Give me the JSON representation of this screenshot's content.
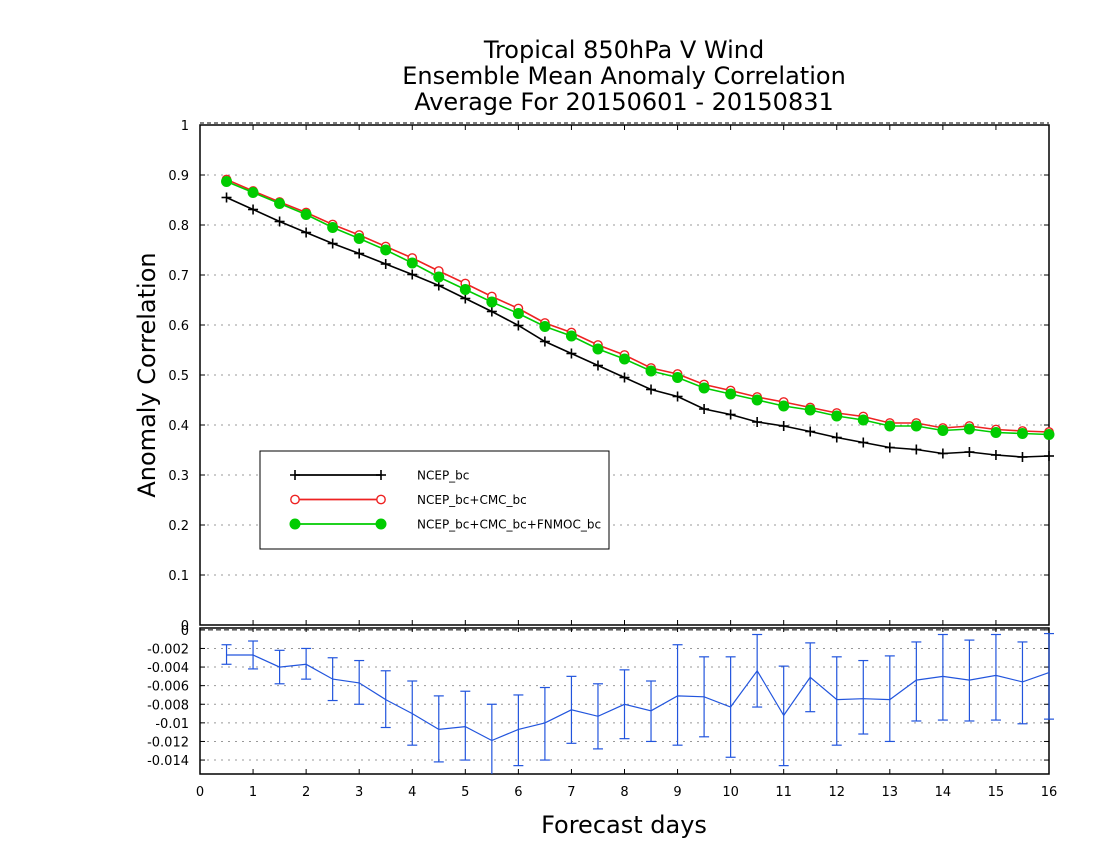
{
  "colors": {
    "ncep": "#000000",
    "ncep_cmc": "#ee2222",
    "ncep_cmc_fnmoc": "#00cc00",
    "diff": "#2255dd",
    "grid": "#999999"
  },
  "chart_data": [
    {
      "type": "line",
      "title": [
        "Tropical 850hPa V Wind",
        "Ensemble Mean Anomaly Correlation",
        "Average For 20150601 - 20150831"
      ],
      "ylabel": "Anomaly Correlation",
      "xlim": [
        0,
        16
      ],
      "ylim": [
        0,
        1
      ],
      "yticks": [
        "0",
        "0.1",
        "0.2",
        "0.3",
        "0.4",
        "0.5",
        "0.6",
        "0.7",
        "0.8",
        "0.9",
        "1"
      ],
      "grid": true,
      "legend_placement": "lower-left",
      "x": [
        0.5,
        1,
        1.5,
        2,
        2.5,
        3,
        3.5,
        4,
        4.5,
        5,
        5.5,
        6,
        6.5,
        7,
        7.5,
        8,
        8.5,
        9,
        9.5,
        10,
        10.5,
        11,
        11.5,
        12,
        12.5,
        13,
        13.5,
        14,
        14.5,
        15,
        15.5,
        16
      ],
      "series": [
        {
          "name": "NCEP_bc",
          "marker": "plus",
          "values": [
            0.855,
            0.831,
            0.807,
            0.785,
            0.763,
            0.743,
            0.722,
            0.701,
            0.679,
            0.653,
            0.627,
            0.599,
            0.567,
            0.543,
            0.519,
            0.495,
            0.471,
            0.457,
            0.432,
            0.421,
            0.406,
            0.398,
            0.387,
            0.375,
            0.365,
            0.355,
            0.351,
            0.343,
            0.346,
            0.34,
            0.336,
            0.338
          ]
        },
        {
          "name": "NCEP_bc+CMC_bc",
          "marker": "open-circle",
          "values": [
            0.891,
            0.868,
            0.846,
            0.825,
            0.801,
            0.78,
            0.757,
            0.734,
            0.708,
            0.683,
            0.657,
            0.633,
            0.604,
            0.585,
            0.56,
            0.54,
            0.514,
            0.502,
            0.481,
            0.469,
            0.456,
            0.446,
            0.435,
            0.424,
            0.417,
            0.404,
            0.404,
            0.394,
            0.398,
            0.391,
            0.388,
            0.386
          ]
        },
        {
          "name": "NCEP_bc+CMC_bc+FNMOC_bc",
          "marker": "filled-circle",
          "values": [
            0.887,
            0.865,
            0.843,
            0.821,
            0.795,
            0.773,
            0.75,
            0.724,
            0.696,
            0.671,
            0.646,
            0.623,
            0.597,
            0.578,
            0.552,
            0.532,
            0.508,
            0.495,
            0.474,
            0.462,
            0.45,
            0.438,
            0.43,
            0.418,
            0.41,
            0.398,
            0.398,
            0.389,
            0.392,
            0.385,
            0.383,
            0.381
          ]
        }
      ]
    },
    {
      "type": "line",
      "xlabel": "Forecast days",
      "xlim": [
        0,
        16
      ],
      "xticks": [
        "0",
        "1",
        "2",
        "3",
        "4",
        "5",
        "6",
        "7",
        "8",
        "9",
        "10",
        "11",
        "12",
        "13",
        "14",
        "15",
        "16"
      ],
      "ylim": [
        -0.0155,
        0.0002
      ],
      "yticks": [
        {
          "value": 0,
          "label": "0"
        },
        {
          "value": -0.002,
          "label": "-0.002"
        },
        {
          "value": -0.004,
          "label": "-0.004"
        },
        {
          "value": -0.006,
          "label": "-0.006"
        },
        {
          "value": -0.008,
          "label": "-0.008"
        },
        {
          "value": -0.01,
          "label": "-0.01"
        },
        {
          "value": -0.012,
          "label": "-0.012"
        },
        {
          "value": -0.014,
          "label": "-0.014"
        }
      ],
      "grid": true,
      "x": [
        0.5,
        1,
        1.5,
        2,
        2.5,
        3,
        3.5,
        4,
        4.5,
        5,
        5.5,
        6,
        6.5,
        7,
        7.5,
        8,
        8.5,
        9,
        9.5,
        10,
        10.5,
        11,
        11.5,
        12,
        12.5,
        13,
        13.5,
        14,
        14.5,
        15,
        15.5,
        16
      ],
      "values": [
        -0.0027,
        -0.0027,
        -0.004,
        -0.0037,
        -0.0053,
        -0.0057,
        -0.0075,
        -0.009,
        -0.0107,
        -0.0104,
        -0.0119,
        -0.0107,
        -0.01,
        -0.0086,
        -0.0093,
        -0.008,
        -0.0087,
        -0.0071,
        -0.0072,
        -0.0083,
        -0.0044,
        -0.0092,
        -0.0051,
        -0.0075,
        -0.0074,
        -0.0075,
        -0.0054,
        -0.005,
        -0.0054,
        -0.0049,
        -0.0056,
        -0.0046
      ],
      "error_low": [
        -0.0037,
        -0.0042,
        -0.0058,
        -0.0053,
        -0.0076,
        -0.008,
        -0.0105,
        -0.0124,
        -0.0142,
        -0.014,
        -0.0158,
        -0.0146,
        -0.014,
        -0.0122,
        -0.0128,
        -0.0117,
        -0.012,
        -0.0124,
        -0.0115,
        -0.0137,
        -0.0083,
        -0.0146,
        -0.0088,
        -0.0124,
        -0.0112,
        -0.012,
        -0.0098,
        -0.0097,
        -0.0098,
        -0.0097,
        -0.0101,
        -0.0096
      ],
      "error_high": [
        -0.0016,
        -0.0012,
        -0.0022,
        -0.002,
        -0.003,
        -0.0033,
        -0.0044,
        -0.0055,
        -0.0071,
        -0.0066,
        -0.008,
        -0.007,
        -0.0062,
        -0.005,
        -0.0058,
        -0.0043,
        -0.0055,
        -0.0016,
        -0.0029,
        -0.0029,
        -0.0005,
        -0.0039,
        -0.0014,
        -0.0029,
        -0.0033,
        -0.0028,
        -0.0013,
        -0.0005,
        -0.0011,
        -0.0005,
        -0.0013,
        -0.0004
      ]
    }
  ]
}
